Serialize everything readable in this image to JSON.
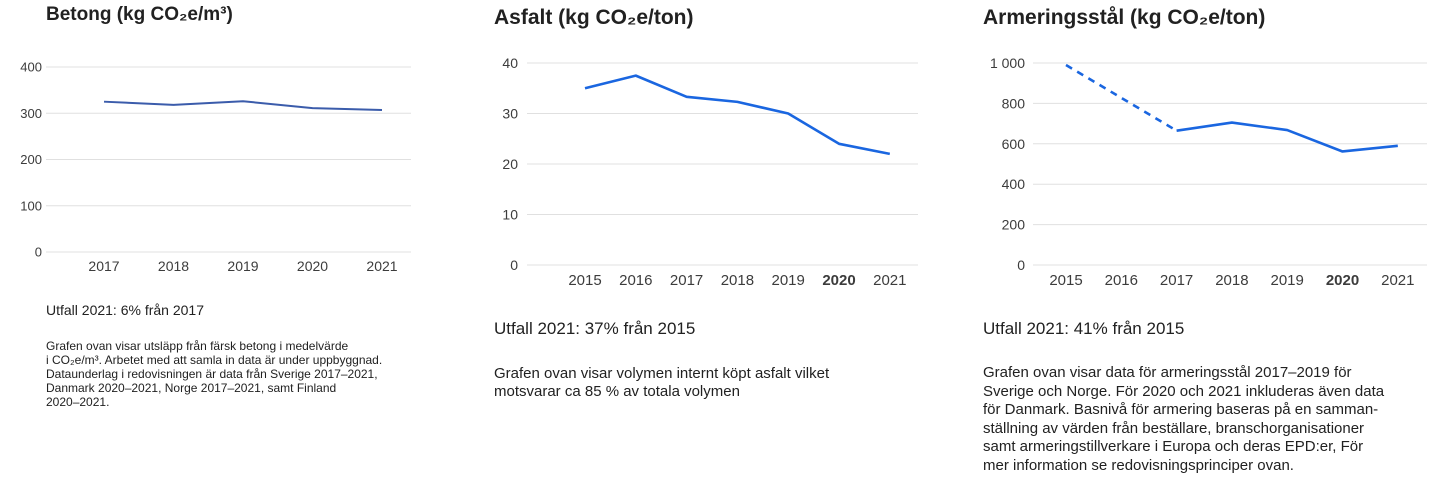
{
  "panels": [
    {
      "title": "Betong (kg CO₂e/m³)",
      "outcome": "Utfall 2021: 6% från 2017",
      "description_lines": [
        "Grafen ovan visar utsläpp från färsk betong i medelvärde",
        "i CO₂e/m³. Arbetet med att samla in data är under uppbyggnad.",
        "Dataunderlag i redovisningen är data från Sverige 2017–2021,",
        "Danmark 2020–2021, Norge 2017–2021, samt Finland",
        "2020–2021."
      ]
    },
    {
      "title": "Asfalt (kg CO₂e/ton)",
      "outcome": "Utfall 2021: 37% från 2015",
      "description_lines": [
        "Grafen ovan visar volymen internt köpt asfalt vilket",
        "motsvarar ca 85 % av totala volymen"
      ]
    },
    {
      "title": "Armeringsstål (kg CO₂e/ton)",
      "outcome": "Utfall 2021: 41% från 2015",
      "description_lines": [
        "Grafen ovan visar data för armeringsstål 2017–2019 för",
        "Sverige och Norge. För 2020 och 2021 inkluderas även data",
        "för Danmark. Basnivå för armering baseras på en samman-",
        "ställning av värden från beställare, branschorganisationer",
        "samt armeringstillverkare i Europa och deras EPD:er, För",
        "mer information se redovisningsprinciper ovan."
      ]
    }
  ],
  "chart_data": [
    {
      "type": "line",
      "title": "Betong (kg CO₂e/m³)",
      "x": [
        "2017",
        "2018",
        "2019",
        "2020",
        "2021"
      ],
      "series": [
        {
          "values": [
            325,
            318,
            326,
            311,
            307
          ],
          "color": "#3b5cab"
        }
      ],
      "ylim": [
        0,
        400
      ],
      "yticks": [
        0,
        100,
        200,
        300,
        400
      ],
      "ytick_labels": [
        "0",
        "100",
        "200",
        "300",
        "400"
      ],
      "bold_x": [],
      "grid": true
    },
    {
      "type": "line",
      "title": "Asfalt (kg CO₂e/ton)",
      "x": [
        "2015",
        "2016",
        "2017",
        "2018",
        "2019",
        "2020",
        "2021"
      ],
      "series": [
        {
          "values": [
            35,
            37.5,
            33.3,
            32.3,
            30,
            24,
            22
          ],
          "color": "#1a66e0"
        }
      ],
      "ylim": [
        0,
        40
      ],
      "yticks": [
        0,
        10,
        20,
        30,
        40
      ],
      "ytick_labels": [
        "0",
        "10",
        "20",
        "30",
        "40"
      ],
      "bold_x": [
        "2020"
      ],
      "grid": true
    },
    {
      "type": "line",
      "title": "Armeringsstål (kg CO₂e/ton)",
      "x": [
        "2015",
        "2016",
        "2017",
        "2018",
        "2019",
        "2020",
        "2021"
      ],
      "series": [
        {
          "values": [
            990,
            null,
            665,
            705,
            668,
            562,
            590
          ],
          "color": "#1a66e0",
          "dashed_until_index": 2
        }
      ],
      "ylim": [
        0,
        1000
      ],
      "yticks": [
        0,
        200,
        400,
        600,
        800,
        1000
      ],
      "ytick_labels": [
        "0",
        "200",
        "400",
        "600",
        "800",
        "1 000"
      ],
      "bold_x": [
        "2020"
      ],
      "grid": true
    }
  ]
}
